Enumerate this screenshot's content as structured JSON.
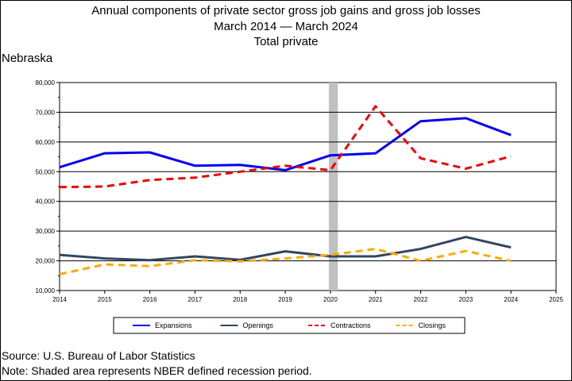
{
  "titles": {
    "line1": "Annual components of private sector gross job gains and gross job losses",
    "line2": "March 2014 — March 2024",
    "line3": "Total private"
  },
  "region": "Nebraska",
  "footer": {
    "source": "Source: U.S. Bureau of Labor Statistics",
    "note": "Note: Shaded area represents NBER defined recession period."
  },
  "chart_data": {
    "type": "line",
    "title": "Annual components of private sector gross job gains and gross job losses",
    "x": [
      2014,
      2015,
      2016,
      2017,
      2018,
      2019,
      2020,
      2021,
      2022,
      2023,
      2024
    ],
    "x_ticks": [
      "2014",
      "2015",
      "2016",
      "2017",
      "2018",
      "2019",
      "2020",
      "2021",
      "2022",
      "2023",
      "2024",
      "2025"
    ],
    "xlim": [
      2014,
      2025
    ],
    "ylim": [
      10000,
      80000
    ],
    "y_ticks": [
      "10,000",
      "20,000",
      "30,000",
      "40,000",
      "50,000",
      "60,000",
      "70,000",
      "80,000"
    ],
    "y_tick_values": [
      10000,
      20000,
      30000,
      40000,
      50000,
      60000,
      70000,
      80000
    ],
    "grid": true,
    "legend_position": "bottom",
    "recession_shading": [
      2020,
      2020.2
    ],
    "series": [
      {
        "name": "Expansions",
        "color": "#0000ee",
        "style": "solid",
        "width": 3,
        "values": [
          51500,
          56200,
          56500,
          52000,
          52300,
          50500,
          55500,
          56200,
          67000,
          68000,
          62300
        ]
      },
      {
        "name": "Openings",
        "color": "#33475e",
        "style": "solid",
        "width": 3,
        "values": [
          22000,
          20800,
          20200,
          21500,
          20300,
          23200,
          21500,
          21500,
          24000,
          28000,
          24500
        ]
      },
      {
        "name": "Contractions",
        "color": "#ee0000",
        "style": "dashed",
        "width": 3,
        "values": [
          44800,
          45000,
          47200,
          48000,
          50000,
          52000,
          50500,
          72000,
          54500,
          51000,
          55200
        ]
      },
      {
        "name": "Closings",
        "color": "#ffaa00",
        "style": "dashed",
        "width": 3,
        "values": [
          15500,
          18800,
          18200,
          20200,
          19800,
          20800,
          22000,
          24000,
          20000,
          23300,
          20000
        ]
      }
    ]
  }
}
